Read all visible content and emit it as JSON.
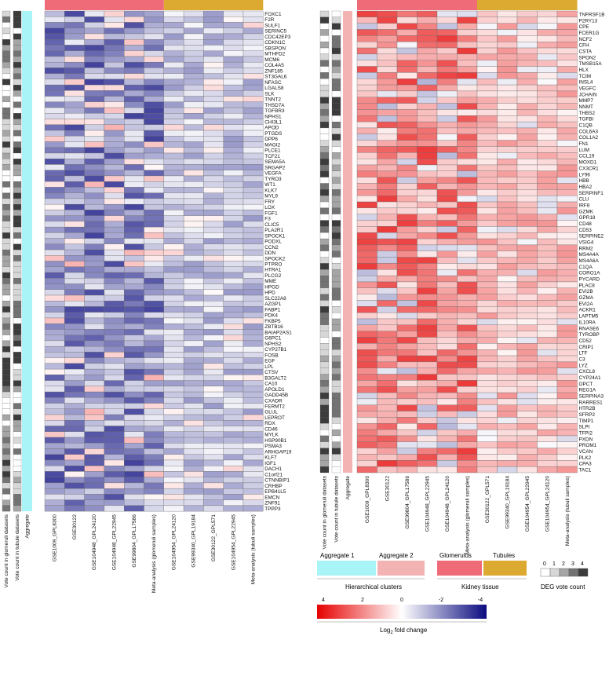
{
  "chart_data": [
    {
      "type": "heatmap",
      "panel": "left",
      "genes": [
        "FOXC1",
        "F2R",
        "SULF1",
        "SERINC5",
        "CDC42EP3",
        "CDKN1C",
        "SBSPON",
        "MTHFD2",
        "MCM6",
        "COL4A5",
        "ZNF185",
        "ST3GAL6",
        "NFASC",
        "LGALS8",
        "SLK",
        "TNNT2",
        "THSD7A",
        "TGFBR3",
        "NPHS1",
        "CHI3L1",
        "APOD",
        "PTGDS",
        "DPP6",
        "MAGI2",
        "PLCE1",
        "TCF21",
        "SEMA5A",
        "SRGAP2",
        "VEGFA",
        "TYRO3",
        "WT1",
        "KLK7",
        "MYL9",
        "FRY",
        "LOX",
        "FGF1",
        "F3",
        "CLIC5",
        "PLA2R1",
        "SPOCK1",
        "PODXL",
        "CCN2",
        "DDN",
        "SPOCK2",
        "PTPRO",
        "HTRA1",
        "PLCG2",
        "MME",
        "HPGD",
        "HPD",
        "SLC22A8",
        "AZGP1",
        "FABP1",
        "PDK4",
        "FKBP5",
        "ZBTB16",
        "BAIAP2AS1",
        "G6PC1",
        "NPHS2",
        "CYP27B1",
        "FOSB",
        "EGF",
        "LPL",
        "CTSV",
        "B3GALT2",
        "CA10",
        "APOLD1",
        "GADD45B",
        "CXADR",
        "FERMT2",
        "GLUL",
        "LEPROT",
        "RDX",
        "CD46",
        "MYLK",
        "HSP90B1",
        "PSMA3",
        "ARHGAP19",
        "KLF7",
        "IGF1",
        "DACH1",
        "C1orf21",
        "CTNNBIP1",
        "CRHBP",
        "EPB41L5",
        "EMCN",
        "ZNF91",
        "TPPP3"
      ],
      "columns": [
        "GSE1009_GPL8300",
        "GSE30122",
        "GSE104948_GPL24120",
        "GSE104948_GPL22945",
        "GSE99804_GPL17586",
        "Meta-analysis (glomeruli samples)",
        "GSE104954_GPL24120",
        "GSE99340_GPL19184",
        "GSE30122_GPL571",
        "GSE104954_GPL22945",
        "Meta-analysis (tubuli samples)"
      ],
      "annotation_columns": [
        "Vote count in glomeruli datasets",
        "Vote count in tubule datasets",
        "Aggregate"
      ],
      "cluster": "Aggregate 1",
      "direction": "down-regulated"
    },
    {
      "type": "heatmap",
      "panel": "right",
      "genes": [
        "TNFRSF1B",
        "P2RY13",
        "CPE",
        "FCER1G",
        "NCF2",
        "CFH",
        "CSTA",
        "SPON2",
        "TMSB15A",
        "HLX",
        "TCIM",
        "INSL4",
        "VEGFC",
        "JCHAIN",
        "MMP7",
        "NNMT",
        "THBS2",
        "TGFBI",
        "C1QB",
        "COL6A3",
        "COL1A2",
        "FN1",
        "LUM",
        "CCL19",
        "MOXD1",
        "CX3CR1",
        "LY96",
        "HBB",
        "HBA2",
        "SERPINF1",
        "CLU",
        "IRF8",
        "GZMK",
        "GPR18",
        "CD48",
        "CD53",
        "SERPINE2",
        "VSIG4",
        "RRM2",
        "MS4A4A",
        "MS4A6A",
        "C1QA",
        "CORO1A",
        "PYCARD",
        "PLAC8",
        "EVI2B",
        "GZMA",
        "EVI2A",
        "ACKR1",
        "LAPTM5",
        "IL10RA",
        "RNASE6",
        "TYROBP",
        "CD52",
        "CRIP1",
        "LTF",
        "C3",
        "LYZ",
        "CXCL8",
        "CYP24A1",
        "OPCT",
        "REG1A",
        "SERPINA3",
        "RARRES1",
        "HTR2B",
        "SFRP2",
        "TIMP1",
        "SLPI",
        "TFPI2",
        "PXDN",
        "PROM1",
        "VCAN",
        "PLK2",
        "CPA3",
        "TAC1"
      ],
      "columns": [
        "GSE1009_GPL8300",
        "GSE30122",
        "GSE99804_GPL17586",
        "GSE104948_GPL22945",
        "GSE104948_GPL24120",
        "Meta-analysis (glomeruli samples)",
        "GSE30122_GPL571",
        "GSE99340_GPL19184",
        "GSE104954_GPL22945",
        "GSE104954_GPL24120",
        "Meta-analysis (tubuli samples)"
      ],
      "annotation_columns": [
        "Vote count in glomeruli datasets",
        "Vote count in tubule datasets",
        "Aggregate"
      ],
      "cluster": "Aggregate 2",
      "direction": "up-regulated"
    }
  ],
  "legend": {
    "hierarchical": {
      "items": [
        "Aggregate 1",
        "Aggregate 2"
      ],
      "caption": "Hierarchical clusters"
    },
    "tissue": {
      "items": [
        "Glomerulus",
        "Tubules"
      ],
      "caption": "Kidney tissue"
    },
    "votes": {
      "ticks": [
        "0",
        "1",
        "2",
        "3",
        "4"
      ],
      "caption": "DEG vote count"
    },
    "colorbar": {
      "ticks": [
        "4",
        "2",
        "0",
        "-2",
        "-4"
      ],
      "caption_prefix": "Log",
      "caption_sub": "2",
      "caption_suffix": " fold change"
    }
  },
  "colors": {
    "aggregate1": "#a8f4f7",
    "aggregate2": "#f4b3b3",
    "glomerulus": "#f06b78",
    "tubules": "#dcaa31",
    "up": "#e60000",
    "down": "#0b0b80"
  }
}
